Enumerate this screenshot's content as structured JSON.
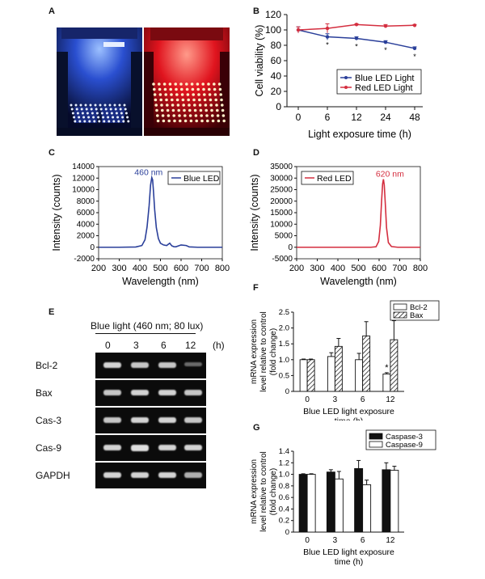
{
  "panels": {
    "A": {
      "label": "A",
      "photos": [
        {
          "name": "blue-led-chamber-photo",
          "tint": "#1c3a9a",
          "glow": "#7fa8ff"
        },
        {
          "name": "red-led-chamber-photo",
          "tint": "#b0141a",
          "glow": "#ff7a60"
        }
      ]
    },
    "B": {
      "label": "B",
      "chart_data": {
        "type": "line",
        "x": [
          "0",
          "6",
          "12",
          "24",
          "48"
        ],
        "xlabel": "Light exposure time (h)",
        "ylabel": "Cell viability (%)",
        "ylim": [
          0,
          120
        ],
        "yticks": [
          0,
          20,
          40,
          60,
          80,
          100,
          120
        ],
        "legend_position": "bottom-right",
        "series": [
          {
            "name": "Blue LED Light",
            "color": "#2a3f9a",
            "values": [
              100,
              91,
              89,
              84,
              76
            ],
            "error": [
              4,
              4,
              2,
              2,
              2
            ]
          },
          {
            "name": "Red LED Light",
            "color": "#d42e3f",
            "values": [
              100,
              102,
              107,
              105,
              106
            ],
            "error": [
              4,
              6,
              1,
              2,
              1
            ]
          }
        ],
        "annotations": [
          "*",
          "*",
          "*",
          "*"
        ]
      }
    },
    "C": {
      "label": "C",
      "chart_data": {
        "type": "line",
        "xlabel": "Wavelength (nm)",
        "ylabel": "Intensity (counts)",
        "xlim": [
          200,
          800
        ],
        "ylim": [
          -2000,
          14000
        ],
        "xticks": [
          200,
          300,
          400,
          500,
          600,
          700,
          800
        ],
        "yticks": [
          -2000,
          0,
          2000,
          4000,
          6000,
          8000,
          10000,
          12000,
          14000
        ],
        "legend_position": "top-right",
        "peak_label": "460 nm",
        "series": [
          {
            "name": "Blue LED",
            "color": "#2a3f9a",
            "x": [
              200,
              300,
              380,
              410,
              425,
              435,
              445,
              452,
              458,
              462,
              466,
              472,
              480,
              490,
              500,
              515,
              530,
              545,
              555,
              565,
              575,
              600,
              625,
              640,
              680,
              800
            ],
            "y": [
              0,
              0,
              40,
              300,
              1300,
              3500,
              7200,
              10800,
              12100,
              11700,
              9800,
              6500,
              3400,
              1500,
              700,
              400,
              300,
              700,
              250,
              100,
              80,
              400,
              300,
              60,
              0,
              0
            ]
          }
        ]
      }
    },
    "D": {
      "label": "D",
      "chart_data": {
        "type": "line",
        "xlabel": "Wavelength (nm)",
        "ylabel": "Intensity (counts)",
        "xlim": [
          200,
          800
        ],
        "ylim": [
          -5000,
          35000
        ],
        "xticks": [
          200,
          300,
          400,
          500,
          600,
          700,
          800
        ],
        "yticks": [
          -5000,
          0,
          5000,
          10000,
          15000,
          20000,
          25000,
          30000,
          35000
        ],
        "legend_position": "top-left",
        "peak_label": "620 nm",
        "series": [
          {
            "name": "Red LED",
            "color": "#d42e3f",
            "x": [
              200,
              400,
              560,
              585,
              598,
              606,
              612,
              617,
              621,
              625,
              630,
              636,
              645,
              660,
              690,
              800
            ],
            "y": [
              0,
              0,
              0,
              200,
              2500,
              9500,
              20000,
              27500,
              29500,
              27000,
              19000,
              8500,
              2000,
              300,
              0,
              0
            ]
          }
        ]
      }
    },
    "E": {
      "label": "E",
      "header": "Blue light (460 nm; 80 lux)",
      "lanes": [
        "0",
        "3",
        "6",
        "12"
      ],
      "unit": "(h)",
      "rows": [
        {
          "name": "Bcl-2",
          "intensity": [
            0.85,
            0.8,
            0.8,
            0.35
          ]
        },
        {
          "name": "Bax",
          "intensity": [
            0.8,
            0.85,
            0.85,
            0.8
          ]
        },
        {
          "name": "Cas-3",
          "intensity": [
            0.8,
            0.85,
            0.85,
            0.8
          ]
        },
        {
          "name": "Cas-9",
          "intensity": [
            0.85,
            0.9,
            0.85,
            0.85
          ]
        },
        {
          "name": "GAPDH",
          "intensity": [
            0.85,
            0.85,
            0.85,
            0.7
          ]
        }
      ]
    },
    "F": {
      "label": "F",
      "chart_data": {
        "type": "bar",
        "categories": [
          "0",
          "3",
          "6",
          "12"
        ],
        "xlabel_lines": [
          "Blue LED light exposure",
          "time (h)"
        ],
        "ylabel_lines": [
          "mRNA expression",
          "level relative to control",
          "(fold change)"
        ],
        "ylim": [
          0,
          2.5
        ],
        "yticks": [
          "0",
          "0.5",
          "1.0",
          "1.5",
          "2.0",
          "2.5"
        ],
        "legend_position": "top-right",
        "series": [
          {
            "name": "Bcl-2",
            "style": "open",
            "values": [
              1.0,
              1.1,
              1.0,
              0.55
            ],
            "error": [
              0.02,
              0.12,
              0.2,
              0.04
            ]
          },
          {
            "name": "Bax",
            "style": "hatched",
            "values": [
              1.0,
              1.42,
              1.75,
              1.63
            ],
            "error": [
              0.02,
              0.25,
              0.45,
              0.6
            ]
          }
        ],
        "annotations": [
          "*"
        ]
      }
    },
    "G": {
      "label": "G",
      "chart_data": {
        "type": "bar",
        "categories": [
          "0",
          "3",
          "6",
          "12"
        ],
        "xlabel_lines": [
          "Blue LED light exposure",
          "time (h)"
        ],
        "ylabel_lines": [
          "mRNA expression",
          "level relative to control",
          "(fold change)"
        ],
        "ylim": [
          0,
          1.4
        ],
        "yticks": [
          "0",
          "0.2",
          "0.4",
          "0.6",
          "0.8",
          "1.0",
          "1.2",
          "1.4"
        ],
        "legend_position": "top-right",
        "series": [
          {
            "name": "Caspase-3",
            "style": "filled",
            "values": [
              1.0,
              1.04,
              1.1,
              1.08
            ],
            "error": [
              0.01,
              0.04,
              0.14,
              0.12
            ]
          },
          {
            "name": "Caspase-9",
            "style": "open",
            "values": [
              1.0,
              0.92,
              0.82,
              1.07
            ],
            "error": [
              0.01,
              0.13,
              0.08,
              0.07
            ]
          }
        ]
      }
    }
  }
}
